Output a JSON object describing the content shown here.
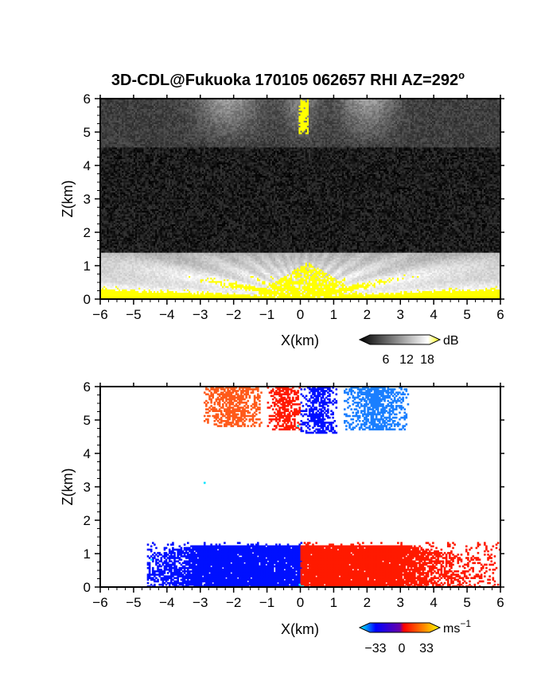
{
  "chart_data": [
    {
      "type": "heatmap",
      "title": "3D-CDL@Fukuoka 170105 062657 RHI AZ=292",
      "title_degree": "o",
      "xlabel": "X(km)",
      "ylabel": "Z(km)",
      "xlim": [
        -6,
        6
      ],
      "ylim": [
        0,
        6
      ],
      "x_ticks": [
        "-6",
        "-5",
        "-4",
        "-3",
        "-2",
        "-1",
        "0",
        "1",
        "2",
        "3",
        "4",
        "5",
        "6"
      ],
      "y_ticks": [
        "0",
        "1",
        "2",
        "3",
        "4",
        "5",
        "6"
      ],
      "variable": "SNR",
      "colorbar": {
        "unit": "dB",
        "ticks": [
          "6",
          "12",
          "18"
        ],
        "range": [
          0,
          21
        ],
        "colors": [
          "#000000",
          "#ffffff",
          "#ffff00"
        ]
      },
      "features": [
        {
          "name": "boundary-layer",
          "x_range": [
            -6,
            6
          ],
          "z_range": [
            0,
            1.4
          ],
          "snr_db": [
            8,
            20
          ]
        },
        {
          "name": "yellow-center-core",
          "x_range": [
            -1.3,
            1.9
          ],
          "z_range": [
            0,
            1.1
          ],
          "snr_db": [
            18,
            21
          ]
        },
        {
          "name": "upper-cloud-layer",
          "x_range": [
            -4.5,
            4.5
          ],
          "z_range": [
            4.5,
            6
          ],
          "snr_db": [
            3,
            10
          ]
        },
        {
          "name": "vertical-beam",
          "x_range": [
            -0.1,
            0.2
          ],
          "z_range": [
            4.9,
            6
          ],
          "snr_db": [
            18,
            21
          ]
        }
      ],
      "background_noise_db": [
        0,
        4
      ]
    },
    {
      "type": "heatmap",
      "xlabel": "X(km)",
      "ylabel": "Z(km)",
      "xlim": [
        -6,
        6
      ],
      "ylim": [
        0,
        6
      ],
      "x_ticks": [
        "-6",
        "-5",
        "-4",
        "-3",
        "-2",
        "-1",
        "0",
        "1",
        "2",
        "3",
        "4",
        "5",
        "6"
      ],
      "y_ticks": [
        "0",
        "1",
        "2",
        "3",
        "4",
        "5",
        "6"
      ],
      "variable": "Doppler velocity",
      "colorbar": {
        "unit": "ms",
        "unit_exponent": "−1",
        "ticks": [
          "−33",
          "0",
          "33"
        ],
        "range": [
          -40,
          40
        ],
        "colors": [
          "#00ffff",
          "#0000ff",
          "#ff0000",
          "#ffff00"
        ]
      },
      "features": [
        {
          "name": "low-level-approaching",
          "x_range": [
            -4.6,
            0
          ],
          "z_range": [
            0,
            1.35
          ],
          "velocity_ms": [
            -12,
            -6
          ]
        },
        {
          "name": "low-level-receding",
          "x_range": [
            0,
            6
          ],
          "z_range": [
            0,
            1.35
          ],
          "velocity_ms": [
            6,
            12
          ]
        },
        {
          "name": "upper-red-cluster",
          "x_range": [
            -1,
            0
          ],
          "z_range": [
            4.7,
            6
          ],
          "velocity_ms": [
            8,
            12
          ]
        },
        {
          "name": "upper-blue-cluster",
          "x_range": [
            0,
            1.1
          ],
          "z_range": [
            4.6,
            6
          ],
          "velocity_ms": [
            -12,
            -8
          ]
        },
        {
          "name": "upper-orange-cluster",
          "x_range": [
            -2.9,
            -1.2
          ],
          "z_range": [
            4.8,
            6
          ],
          "velocity_ms": [
            16,
            20
          ]
        },
        {
          "name": "upper-lightblue-cluster",
          "x_range": [
            1.3,
            3.2
          ],
          "z_range": [
            4.7,
            6
          ],
          "velocity_ms": [
            -20,
            -16
          ]
        }
      ]
    }
  ]
}
